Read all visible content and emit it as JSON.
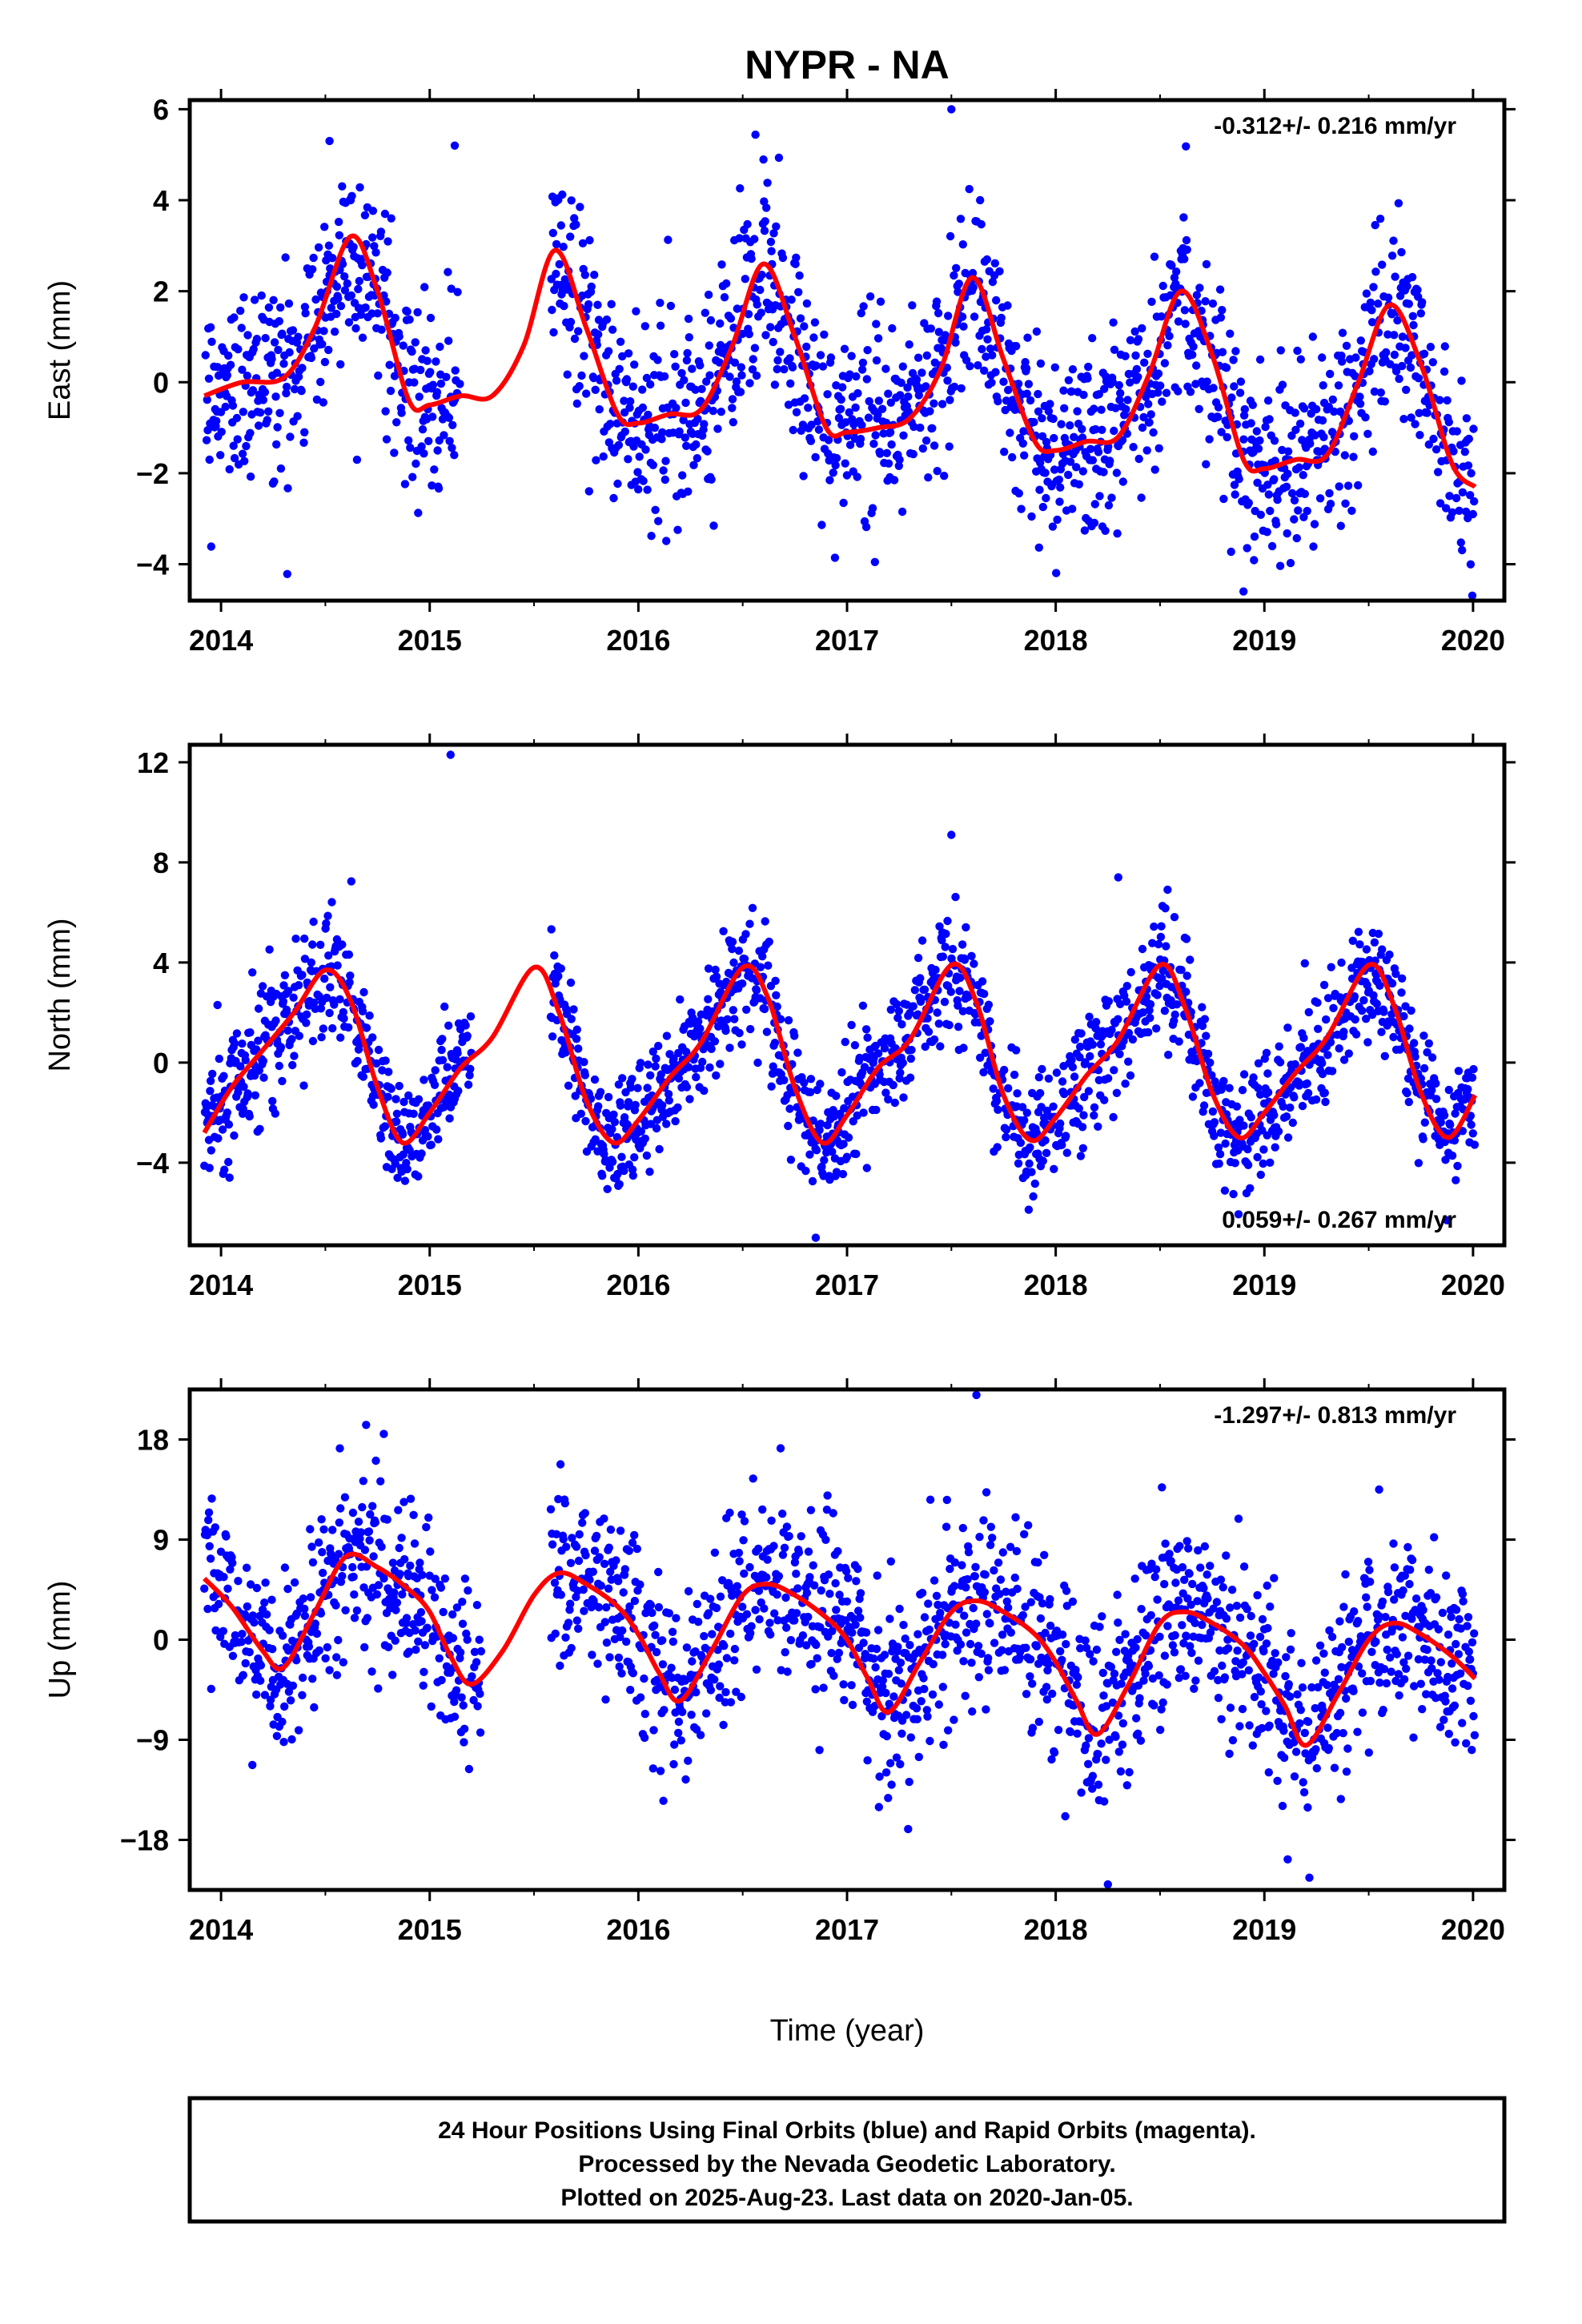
{
  "title": "NYPR - NA",
  "xlabel": "Time (year)",
  "colors": {
    "data": "#0000ff",
    "fit": "#ff0000",
    "frame": "#000000"
  },
  "footer": {
    "line1": "24 Hour Positions Using Final Orbits (blue) and Rapid Orbits (magenta).",
    "line2": "Processed by the Nevada Geodetic Laboratory.",
    "line3": "Plotted on 2025-Aug-23. Last data on 2020-Jan-05."
  },
  "chart_data": [
    {
      "type": "scatter",
      "ylabel": "East (mm)",
      "rate_label": "-0.312+/- 0.216 mm/yr",
      "rate_position": "top-right",
      "xlim": [
        2013.85,
        2020.15
      ],
      "ylim": [
        -4.8,
        6.2
      ],
      "xticks": [
        2014,
        2015,
        2016,
        2017,
        2018,
        2019,
        2020
      ],
      "yticks": [
        -4,
        -2,
        0,
        2,
        4,
        6
      ],
      "data_start": 2013.92,
      "data_end": 2020.01,
      "gap": [
        2015.15,
        2015.58
      ],
      "scatter_sd": 1.1,
      "outliers": [
        [
          2017.5,
          6.0
        ],
        [
          2015.12,
          5.2
        ],
        [
          2014.52,
          5.3
        ],
        [
          2018.9,
          -4.6
        ]
      ],
      "fit": {
        "x": [
          2013.92,
          2014.1,
          2014.3,
          2014.45,
          2014.62,
          2014.75,
          2014.9,
          2015.0,
          2015.15,
          2015.3,
          2015.45,
          2015.6,
          2015.75,
          2015.9,
          2016.0,
          2016.15,
          2016.3,
          2016.45,
          2016.6,
          2016.75,
          2016.9,
          2017.0,
          2017.15,
          2017.3,
          2017.45,
          2017.6,
          2017.75,
          2017.9,
          2018.0,
          2018.15,
          2018.3,
          2018.45,
          2018.6,
          2018.75,
          2018.9,
          2019.0,
          2019.15,
          2019.3,
          2019.45,
          2019.6,
          2019.75,
          2019.9,
          2020.01
        ],
        "y": [
          -0.3,
          0.0,
          0.1,
          1.2,
          3.2,
          2.0,
          -0.4,
          -0.5,
          -0.3,
          -0.3,
          0.8,
          2.9,
          1.2,
          -0.7,
          -0.9,
          -0.7,
          -0.6,
          0.8,
          2.6,
          1.0,
          -1.0,
          -1.1,
          -1.0,
          -0.8,
          0.3,
          2.3,
          0.5,
          -1.3,
          -1.5,
          -1.3,
          -1.2,
          0.2,
          2.0,
          0.6,
          -1.7,
          -1.9,
          -1.7,
          -1.6,
          0.0,
          1.7,
          0.4,
          -1.8,
          -2.3
        ]
      }
    },
    {
      "type": "scatter",
      "ylabel": "North (mm)",
      "rate_label": "0.059+/- 0.267 mm/yr",
      "rate_position": "bottom-right",
      "xlim": [
        2013.85,
        2020.15
      ],
      "ylim": [
        -7.3,
        12.7
      ],
      "xticks": [
        2014,
        2015,
        2016,
        2017,
        2018,
        2019,
        2020
      ],
      "yticks": [
        -4,
        0,
        4,
        8,
        12
      ],
      "data_start": 2013.92,
      "data_end": 2020.01,
      "gap": [
        2015.2,
        2015.58
      ],
      "scatter_sd": 1.2,
      "outliers": [
        [
          2015.1,
          12.3
        ],
        [
          2017.5,
          9.1
        ],
        [
          2016.85,
          -7.0
        ],
        [
          2018.3,
          7.4
        ]
      ],
      "fit": {
        "x": [
          2013.92,
          2014.05,
          2014.2,
          2014.35,
          2014.5,
          2014.62,
          2014.75,
          2014.87,
          2015.0,
          2015.15,
          2015.3,
          2015.5,
          2015.62,
          2015.75,
          2015.88,
          2016.0,
          2016.15,
          2016.3,
          2016.5,
          2016.62,
          2016.75,
          2016.88,
          2017.0,
          2017.15,
          2017.3,
          2017.5,
          2017.62,
          2017.75,
          2017.88,
          2018.0,
          2018.15,
          2018.3,
          2018.5,
          2018.62,
          2018.75,
          2018.88,
          2019.0,
          2019.15,
          2019.3,
          2019.5,
          2019.62,
          2019.75,
          2019.88,
          2020.01
        ],
        "y": [
          -2.8,
          -1.0,
          0.5,
          2.0,
          3.7,
          2.5,
          -1.0,
          -3.2,
          -2.0,
          -0.2,
          1.0,
          3.8,
          2.0,
          -1.5,
          -3.2,
          -2.3,
          -0.6,
          0.8,
          3.8,
          2.6,
          -1.0,
          -3.2,
          -2.1,
          -0.2,
          0.9,
          3.9,
          2.4,
          -1.3,
          -3.1,
          -2.2,
          -0.5,
          0.9,
          3.9,
          2.2,
          -1.2,
          -3.0,
          -2.0,
          -0.4,
          1.0,
          3.9,
          2.3,
          -1.2,
          -3.0,
          -1.3
        ]
      }
    },
    {
      "type": "scatter",
      "ylabel": "Up (mm)",
      "rate_label": "-1.297+/- 0.813 mm/yr",
      "rate_position": "top-right",
      "xlim": [
        2013.85,
        2020.15
      ],
      "ylim": [
        -22.5,
        22.5
      ],
      "xticks": [
        2014,
        2015,
        2016,
        2017,
        2018,
        2019,
        2020
      ],
      "yticks": [
        -18,
        -9,
        0,
        9,
        18
      ],
      "data_start": 2013.92,
      "data_end": 2020.01,
      "gap": [
        2015.25,
        2015.58
      ],
      "scatter_sd": 4.2,
      "outliers": [
        [
          2017.62,
          22.0
        ],
        [
          2018.25,
          -22.0
        ],
        [
          2014.78,
          18.5
        ],
        [
          2019.55,
          13.5
        ]
      ],
      "fit": {
        "x": [
          2013.92,
          2014.05,
          2014.2,
          2014.3,
          2014.45,
          2014.6,
          2014.75,
          2014.9,
          2015.0,
          2015.1,
          2015.2,
          2015.35,
          2015.5,
          2015.62,
          2015.75,
          2015.9,
          2016.0,
          2016.1,
          2016.2,
          2016.35,
          2016.5,
          2016.62,
          2016.75,
          2016.9,
          2017.0,
          2017.1,
          2017.2,
          2017.35,
          2017.5,
          2017.62,
          2017.75,
          2017.9,
          2018.0,
          2018.1,
          2018.2,
          2018.35,
          2018.5,
          2018.62,
          2018.75,
          2018.9,
          2019.0,
          2019.1,
          2019.2,
          2019.35,
          2019.5,
          2019.62,
          2019.75,
          2019.9,
          2020.01
        ],
        "y": [
          5.5,
          3.0,
          -1.0,
          -2.5,
          2.5,
          7.5,
          6.5,
          4.5,
          2.5,
          -1.5,
          -4.0,
          -1.0,
          4.0,
          6.0,
          5.0,
          3.0,
          0.5,
          -3.0,
          -5.5,
          -1.0,
          4.0,
          5.0,
          4.0,
          2.0,
          0.0,
          -3.5,
          -6.5,
          -2.0,
          2.5,
          3.5,
          2.5,
          0.5,
          -2.0,
          -5.5,
          -8.5,
          -4.0,
          1.5,
          2.5,
          1.5,
          -0.5,
          -3.0,
          -6.0,
          -9.5,
          -5.0,
          0.0,
          1.5,
          0.5,
          -1.5,
          -3.5
        ]
      }
    }
  ]
}
